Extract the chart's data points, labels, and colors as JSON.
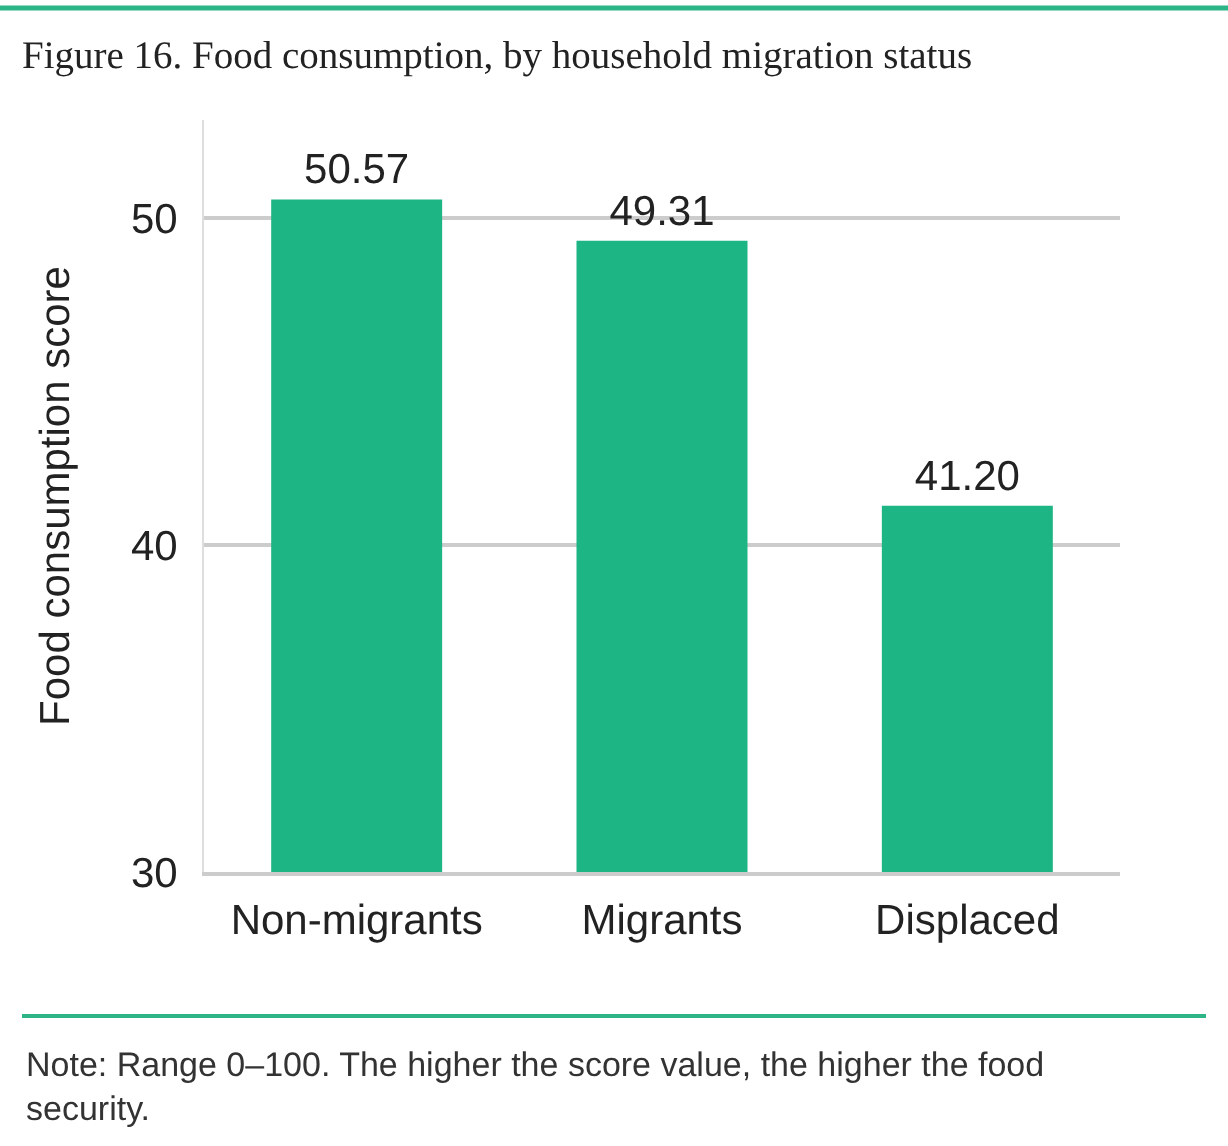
{
  "chart_data": {
    "type": "bar",
    "title": "Figure 16. Food consumption, by household migration status",
    "ylabel": "Food consumption score",
    "categories": [
      "Non-migrants",
      "Migrants",
      "Displaced"
    ],
    "values": [
      50.57,
      49.31,
      41.2
    ],
    "value_labels": [
      "50.57",
      "49.31",
      "41.20"
    ],
    "color": "#1db584",
    "ylim": [
      30,
      53
    ],
    "yticks": [
      30,
      40,
      50
    ],
    "grid": "y",
    "annotations": [
      "Note: Range 0–100. The higher the score value, the higher the food security."
    ]
  }
}
